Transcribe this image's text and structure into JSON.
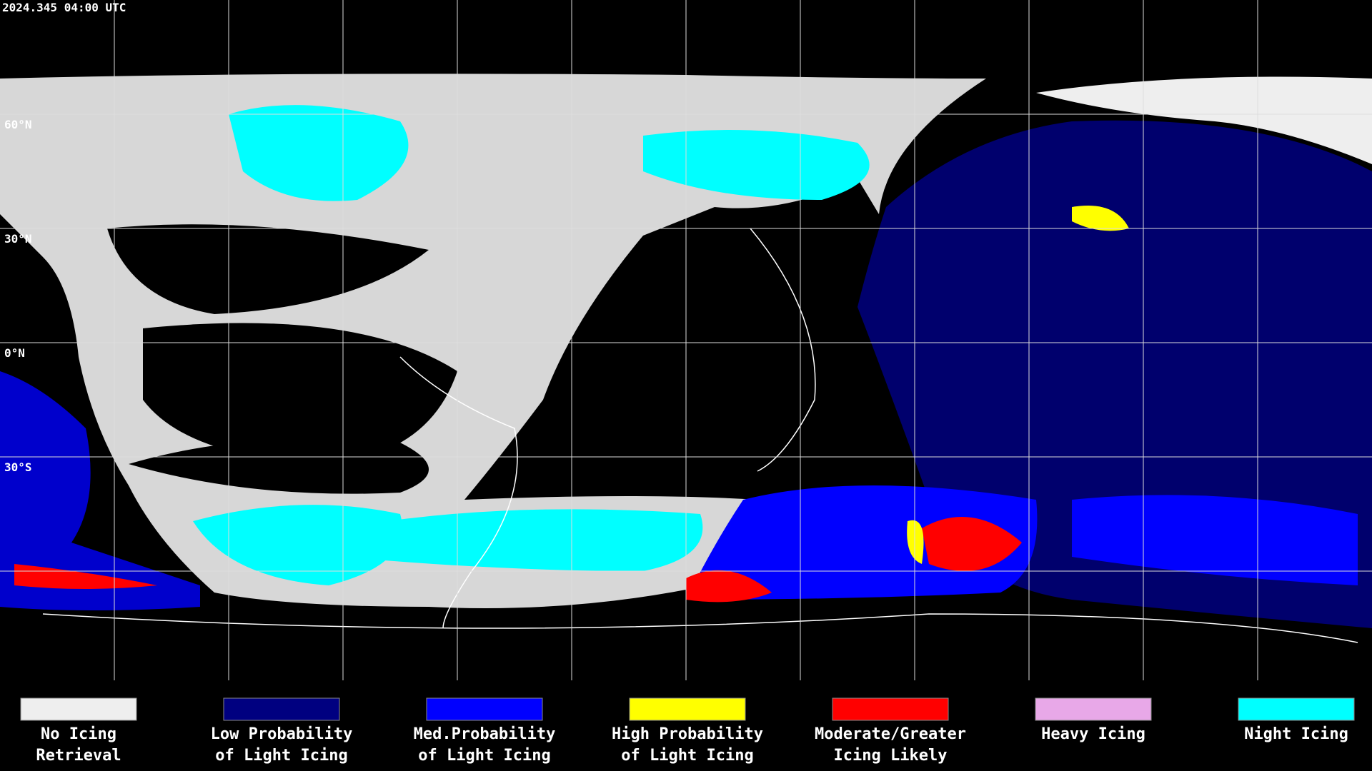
{
  "header": {
    "title": "2024.345 04:00 UTC"
  },
  "map": {
    "latitude_labels": [
      "60°N",
      "30°N",
      "0°N",
      "30°S"
    ]
  },
  "legend": {
    "items": [
      {
        "color": "#eeeeee",
        "label": [
          "No Icing",
          "Retrieval"
        ]
      },
      {
        "color": "#000080",
        "label": [
          "Low Probability",
          "of Light Icing"
        ]
      },
      {
        "color": "#0000ff",
        "label": [
          "Med.Probability",
          "of Light Icing"
        ]
      },
      {
        "color": "#ffff00",
        "label": [
          "High Probability",
          "of Light Icing"
        ]
      },
      {
        "color": "#ff0000",
        "label": [
          "Moderate/Greater",
          "Icing Likely"
        ]
      },
      {
        "color": "#e8a8e8",
        "label": [
          "Heavy Icing"
        ]
      },
      {
        "color": "#00ffff",
        "label": [
          "Night Icing"
        ]
      }
    ]
  }
}
